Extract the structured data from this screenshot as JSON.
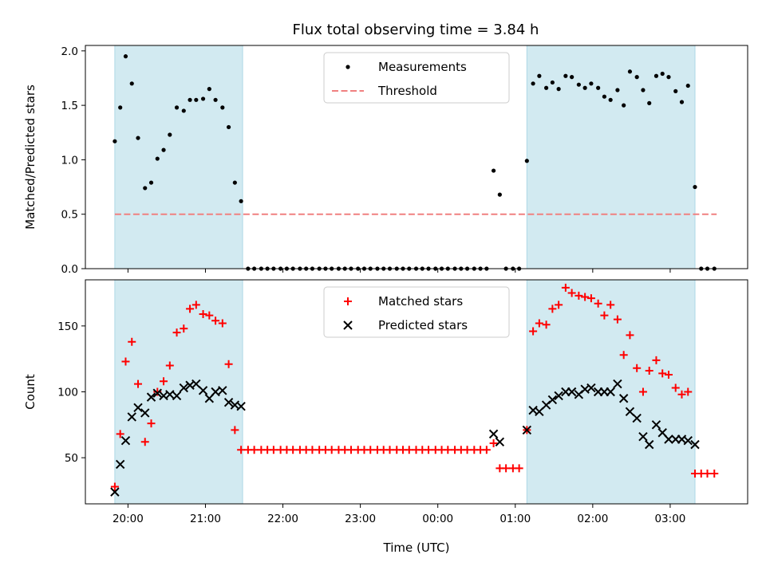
{
  "chart_data": {
    "type": "scatter",
    "title": "Flux total observing time = 3.84 h",
    "x_axis": {
      "label": "Time (UTC)",
      "tick_labels": [
        "20:00",
        "21:00",
        "22:00",
        "23:00",
        "00:00",
        "01:00",
        "02:00",
        "03:00"
      ],
      "tick_values_hours": [
        0,
        1,
        2,
        3,
        4,
        5,
        6,
        7
      ],
      "range_hours": [
        -0.55,
        8.0
      ]
    },
    "shaded_intervals_hours": [
      [
        -0.17,
        1.48
      ],
      [
        5.15,
        7.32
      ]
    ],
    "shade_color": "#add8e6",
    "panels": [
      {
        "ylabel": "Matched/Predicted stars",
        "ylim": [
          0,
          2.05
        ],
        "yticks": [
          0.0,
          0.5,
          1.0,
          1.5,
          2.0
        ],
        "ytick_labels": [
          "0.0",
          "0.5",
          "1.0",
          "1.5",
          "2.0"
        ],
        "legend": {
          "placement": "upper-center",
          "entries": [
            "Measurements",
            "Threshold"
          ]
        },
        "threshold": {
          "name": "Threshold",
          "y": 0.5,
          "x_range_hours": [
            -0.17,
            7.6
          ],
          "color": "#f08080",
          "style": "dashed"
        },
        "series": [
          {
            "name": "Measurements",
            "marker": "dot",
            "color": "#000000",
            "x": [
              -0.17,
              -0.1,
              -0.03,
              0.05,
              0.13,
              0.22,
              0.3,
              0.38,
              0.46,
              0.54,
              0.63,
              0.72,
              0.8,
              0.88,
              0.97,
              1.05,
              1.13,
              1.22,
              1.3,
              1.38,
              1.46,
              1.55,
              1.63,
              1.72,
              1.8,
              1.88,
              1.97,
              2.05,
              2.13,
              2.22,
              2.3,
              2.38,
              2.47,
              2.55,
              2.63,
              2.72,
              2.8,
              2.88,
              2.97,
              3.05,
              3.13,
              3.22,
              3.3,
              3.38,
              3.47,
              3.55,
              3.63,
              3.72,
              3.8,
              3.88,
              3.97,
              4.05,
              4.13,
              4.22,
              4.3,
              4.38,
              4.47,
              4.55,
              4.63,
              4.72,
              4.8,
              4.88,
              4.97,
              5.05,
              5.15,
              5.23,
              5.31,
              5.4,
              5.48,
              5.56,
              5.65,
              5.73,
              5.82,
              5.9,
              5.98,
              6.07,
              6.15,
              6.23,
              6.32,
              6.4,
              6.48,
              6.57,
              6.65,
              6.73,
              6.82,
              6.9,
              6.98,
              7.07,
              7.15,
              7.23,
              7.32,
              7.4,
              7.48,
              7.57
            ],
            "y": [
              1.17,
              1.48,
              1.95,
              1.7,
              1.2,
              0.74,
              0.79,
              1.01,
              1.09,
              1.23,
              1.48,
              1.45,
              1.55,
              1.55,
              1.56,
              1.65,
              1.55,
              1.48,
              1.3,
              0.79,
              0.62,
              0,
              0,
              0,
              0,
              0,
              0,
              0,
              0,
              0,
              0,
              0,
              0,
              0,
              0,
              0,
              0,
              0,
              0,
              0,
              0,
              0,
              0,
              0,
              0,
              0,
              0,
              0,
              0,
              0,
              0,
              0,
              0,
              0,
              0,
              0,
              0,
              0,
              0,
              0.9,
              0.68,
              0,
              0,
              0,
              0.99,
              1.7,
              1.77,
              1.66,
              1.71,
              1.65,
              1.77,
              1.76,
              1.69,
              1.66,
              1.7,
              1.66,
              1.58,
              1.55,
              1.64,
              1.5,
              1.81,
              1.76,
              1.64,
              1.52,
              1.77,
              1.79,
              1.76,
              1.63,
              1.53,
              1.68,
              0.75,
              0,
              0,
              0
            ]
          }
        ]
      },
      {
        "ylabel": "Count",
        "ylim": [
          15,
          185
        ],
        "yticks": [
          50,
          100,
          150
        ],
        "ytick_labels": [
          "50",
          "100",
          "150"
        ],
        "legend": {
          "placement": "upper-center",
          "entries": [
            "Matched stars",
            "Predicted stars"
          ]
        },
        "series": [
          {
            "name": "Matched stars",
            "marker": "plus",
            "color": "#ff0000",
            "x": [
              -0.17,
              -0.1,
              -0.03,
              0.05,
              0.13,
              0.22,
              0.3,
              0.38,
              0.46,
              0.54,
              0.63,
              0.72,
              0.8,
              0.88,
              0.97,
              1.05,
              1.13,
              1.22,
              1.3,
              1.38,
              1.46,
              1.55,
              1.63,
              1.72,
              1.8,
              1.88,
              1.97,
              2.05,
              2.13,
              2.22,
              2.3,
              2.38,
              2.47,
              2.55,
              2.63,
              2.72,
              2.8,
              2.88,
              2.97,
              3.05,
              3.13,
              3.22,
              3.3,
              3.38,
              3.47,
              3.55,
              3.63,
              3.72,
              3.8,
              3.88,
              3.97,
              4.05,
              4.13,
              4.22,
              4.3,
              4.38,
              4.47,
              4.55,
              4.63,
              4.72,
              4.8,
              4.88,
              4.97,
              5.05,
              5.15,
              5.23,
              5.31,
              5.4,
              5.48,
              5.56,
              5.65,
              5.73,
              5.82,
              5.9,
              5.98,
              6.07,
              6.15,
              6.23,
              6.32,
              6.4,
              6.48,
              6.57,
              6.65,
              6.73,
              6.82,
              6.9,
              6.98,
              7.07,
              7.15,
              7.23,
              7.32,
              7.4,
              7.48,
              7.57
            ],
            "y": [
              28,
              68,
              123,
              138,
              106,
              62,
              76,
              100,
              108,
              120,
              145,
              148,
              163,
              166,
              159,
              158,
              154,
              152,
              121,
              71,
              56,
              56,
              56,
              56,
              56,
              56,
              56,
              56,
              56,
              56,
              56,
              56,
              56,
              56,
              56,
              56,
              56,
              56,
              56,
              56,
              56,
              56,
              56,
              56,
              56,
              56,
              56,
              56,
              56,
              56,
              56,
              56,
              56,
              56,
              56,
              56,
              56,
              56,
              56,
              61,
              42,
              42,
              42,
              42,
              71,
              146,
              152,
              151,
              163,
              166,
              179,
              175,
              173,
              172,
              171,
              167,
              158,
              166,
              155,
              128,
              143,
              118,
              100,
              116,
              124,
              114,
              113,
              103,
              98,
              100,
              38,
              38,
              38,
              38
            ]
          },
          {
            "name": "Predicted stars",
            "marker": "x",
            "color": "#000000",
            "x": [
              -0.17,
              -0.1,
              -0.03,
              0.05,
              0.13,
              0.22,
              0.3,
              0.38,
              0.46,
              0.54,
              0.63,
              0.72,
              0.8,
              0.88,
              0.97,
              1.05,
              1.13,
              1.22,
              1.3,
              1.38,
              1.46,
              4.72,
              4.8,
              5.15,
              5.23,
              5.31,
              5.4,
              5.48,
              5.56,
              5.65,
              5.73,
              5.82,
              5.9,
              5.98,
              6.07,
              6.15,
              6.23,
              6.32,
              6.4,
              6.48,
              6.57,
              6.65,
              6.73,
              6.82,
              6.9,
              6.98,
              7.07,
              7.15,
              7.23,
              7.32
            ],
            "y": [
              24,
              45,
              63,
              81,
              88,
              84,
              96,
              99,
              97,
              98,
              97,
              103,
              105,
              106,
              101,
              95,
              100,
              101,
              92,
              90,
              89,
              68,
              62,
              71,
              86,
              85,
              90,
              94,
              97,
              100,
              100,
              98,
              102,
              103,
              100,
              100,
              100,
              106,
              95,
              85,
              80,
              66,
              60,
              75,
              69,
              64,
              64,
              64,
              63,
              60
            ]
          }
        ]
      }
    ]
  }
}
